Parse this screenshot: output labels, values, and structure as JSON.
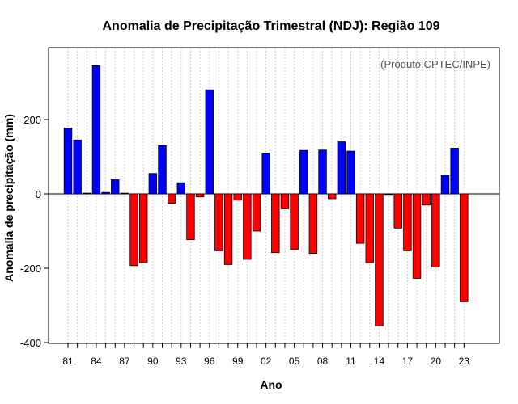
{
  "chart_data": {
    "type": "bar",
    "title": "Anomalia de Precipitação Trimestral (NDJ): Região 109",
    "xlabel": "Ano",
    "ylabel": "Anomalia de precipitação (mm)",
    "annotation": "(Produto:CPTEC/INPE)",
    "ylim": [
      -410,
      390
    ],
    "yticks": [
      -400,
      -200,
      0,
      200
    ],
    "grid": "vertical dotted, one per year",
    "colors": {
      "positive": "#0000ff",
      "negative": "#ff0000",
      "outline": "#000000"
    },
    "x_tick_labels": [
      "81",
      "84",
      "87",
      "90",
      "93",
      "96",
      "99",
      "02",
      "05",
      "08",
      "11",
      "14",
      "17",
      "20",
      "23"
    ],
    "categories": [
      "1981",
      "1982",
      "1983",
      "1984",
      "1985",
      "1986",
      "1987",
      "1988",
      "1989",
      "1990",
      "1991",
      "1992",
      "1993",
      "1994",
      "1995",
      "1996",
      "1997",
      "1998",
      "1999",
      "2000",
      "2001",
      "2002",
      "2003",
      "2004",
      "2005",
      "2006",
      "2007",
      "2008",
      "2009",
      "2010",
      "2011",
      "2012",
      "2013",
      "2014",
      "2015",
      "2016",
      "2017",
      "2018",
      "2019",
      "2020",
      "2021",
      "2022",
      "2023"
    ],
    "values": [
      177,
      145,
      2,
      345,
      4,
      38,
      2,
      -193,
      -185,
      55,
      130,
      -25,
      30,
      -123,
      -8,
      280,
      -153,
      -190,
      -17,
      -176,
      -100,
      110,
      -158,
      -40,
      -150,
      117,
      -160,
      118,
      -13,
      140,
      115,
      -133,
      -185,
      -355,
      0,
      -92,
      -153,
      -227,
      -30,
      -197,
      50,
      123,
      -290
    ]
  }
}
